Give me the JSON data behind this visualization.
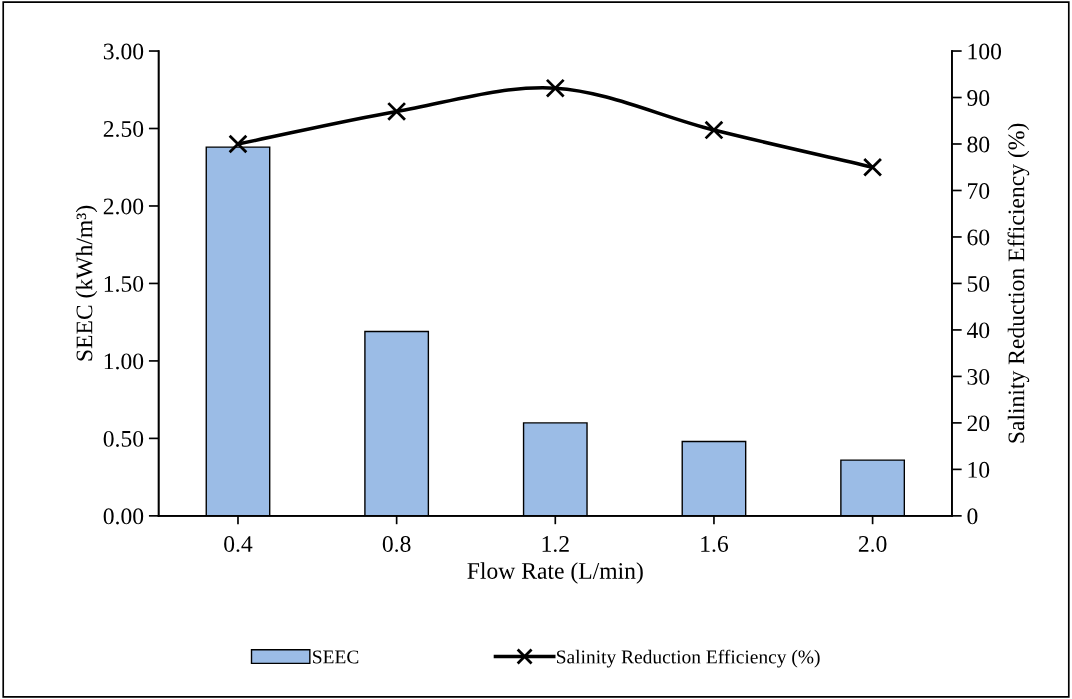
{
  "chart_data": {
    "type": "bar",
    "xlabel": "Flow Rate (L/min)",
    "ylabel": "SEEC (kWh/m³)",
    "y2label": "Salinity Reduction Efficiency (%)",
    "categories": [
      "0.4",
      "0.8",
      "1.2",
      "1.6",
      "2.0"
    ],
    "series": [
      {
        "name": "SEEC",
        "color": "#9bbce6",
        "values": [
          2.38,
          1.19,
          0.6,
          0.48,
          0.36
        ]
      },
      {
        "name": "Salinity Reduction Efficiency (%)",
        "type": "line",
        "axis": "y2",
        "color": "#000000",
        "marker": "cross",
        "values": [
          80,
          87,
          92,
          83,
          75
        ]
      }
    ],
    "ylim": [
      0,
      3
    ],
    "yticks": [
      {
        "value": 0,
        "label": "0.00"
      },
      {
        "value": 0.5,
        "label": "0.50"
      },
      {
        "value": 1,
        "label": "1.00"
      },
      {
        "value": 1.5,
        "label": "1.50"
      },
      {
        "value": 2,
        "label": "2.00"
      },
      {
        "value": 2.5,
        "label": "2.50"
      },
      {
        "value": 3,
        "label": "3.00"
      }
    ],
    "y2lim": [
      0,
      100
    ],
    "y2ticks": [
      0,
      10,
      20,
      30,
      40,
      50,
      60,
      70,
      80,
      90,
      100
    ],
    "grid": false,
    "legend": "bottom"
  }
}
